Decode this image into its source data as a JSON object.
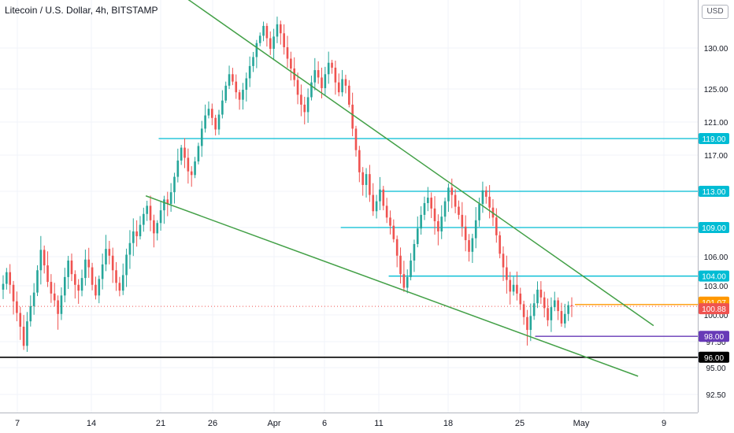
{
  "header": {
    "title": "Litecoin / U.S. Dollar, 4h, BITSTAMP",
    "currency_badge": "USD"
  },
  "colors": {
    "up": "#26a69a",
    "down": "#ef5350",
    "trendline": "#43a047",
    "cyan_level": "#00bcd4",
    "orange_level": "#ff9800",
    "purple_level": "#673ab7",
    "black_level": "#000000",
    "price_dotted": "#ef5350"
  },
  "chart_data": {
    "type": "candlestick",
    "title": "Litecoin / U.S. Dollar, 4h, BITSTAMP",
    "xlabel": "",
    "ylabel": "",
    "y_axis": {
      "ticks": [
        "130.00",
        "125.00",
        "121.00",
        "117.00",
        "113.00",
        "109.00",
        "106.00",
        "103.00",
        "100.00",
        "97.50",
        "95.00",
        "92.50"
      ],
      "tick_values": [
        130.0,
        125.0,
        121.0,
        117.0,
        113.0,
        109.0,
        106.0,
        103.0,
        100.0,
        97.5,
        95.0,
        92.5
      ]
    },
    "x_axis": {
      "ticks": [
        "7",
        "14",
        "21",
        "26",
        "Apr",
        "6",
        "11",
        "18",
        "25",
        "May",
        "9"
      ],
      "tick_days": [
        7,
        14,
        21,
        26,
        32,
        37,
        42,
        49,
        56,
        62,
        70
      ]
    },
    "horizontal_levels": [
      {
        "label": "119.00",
        "value": 119.0,
        "color": "cyan",
        "start_day": 20.8
      },
      {
        "label": "113.00",
        "value": 113.0,
        "color": "cyan",
        "start_day": 42.0
      },
      {
        "label": "109.00",
        "value": 109.0,
        "color": "cyan",
        "start_day": 38.5
      },
      {
        "label": "104.00",
        "value": 104.0,
        "color": "cyan",
        "start_day": 43.0
      },
      {
        "label": "98.00",
        "value": 98.0,
        "color": "purple",
        "start_day": 57.5
      },
      {
        "label": "96.00",
        "value": 96.0,
        "color": "black",
        "start_day": 0.0
      }
    ],
    "price_labels": [
      {
        "label": "101.07",
        "value": 101.07,
        "color": "orange"
      },
      {
        "label": "100.88",
        "value": 100.88,
        "color": "red"
      }
    ],
    "trendlines": [
      {
        "from": [
          23.0,
          136.5
        ],
        "to": [
          69.0,
          99.0
        ]
      },
      {
        "from": [
          19.5,
          112.5
        ],
        "to": [
          67.5,
          94.2
        ]
      }
    ],
    "candles_close": [
      103.2,
      104.4,
      103.1,
      101.4,
      100.2,
      98.9,
      97.1,
      99.4,
      100.9,
      102.3,
      104.6,
      106.7,
      105.1,
      103.4,
      102.2,
      101.5,
      100.1,
      102.0,
      103.9,
      105.6,
      104.2,
      103.1,
      102.5,
      103.8,
      105.7,
      104.9,
      103.1,
      102.0,
      103.7,
      105.2,
      106.8,
      106.1,
      104.6,
      103.3,
      102.5,
      104.1,
      106.2,
      107.4,
      108.6,
      108.1,
      109.3,
      110.5,
      111.4,
      109.8,
      108.4,
      109.5,
      110.9,
      112.1,
      111.6,
      112.9,
      114.6,
      116.4,
      117.9,
      116.7,
      115.2,
      114.8,
      116.3,
      118.1,
      120.2,
      121.8,
      122.6,
      121.5,
      120.1,
      121.9,
      123.6,
      125.4,
      126.8,
      125.9,
      124.6,
      123.7,
      124.9,
      126.3,
      127.8,
      128.9,
      130.6,
      131.5,
      132.7,
      131.2,
      129.9,
      131.4,
      132.9,
      131.8,
      130.1,
      128.7,
      127.5,
      126.1,
      124.3,
      123.1,
      122.2,
      124.0,
      125.8,
      127.3,
      126.4,
      125.1,
      126.8,
      128.2,
      127.6,
      125.8,
      124.6,
      126.2,
      125.4,
      123.1,
      120.2,
      117.6,
      115.1,
      113.7,
      114.9,
      112.6,
      110.8,
      111.9,
      113.2,
      111.4,
      110.1,
      109.2,
      107.8,
      106.1,
      104.2,
      102.8,
      103.9,
      105.6,
      107.3,
      108.9,
      110.4,
      111.7,
      112.3,
      111.1,
      109.7,
      108.6,
      110.2,
      111.9,
      113.4,
      112.6,
      111.3,
      110.4,
      109.1,
      107.7,
      106.5,
      107.9,
      109.8,
      111.6,
      113.1,
      112.4,
      111.2,
      110.1,
      108.2,
      106.3,
      104.9,
      103.6,
      102.4,
      103.1,
      102.2,
      101.1,
      99.8,
      98.6,
      99.9,
      101.2,
      102.6,
      101.8,
      100.7,
      99.5,
      100.8,
      101.5,
      100.4,
      99.2,
      100.1,
      101.0,
      100.9
    ]
  }
}
